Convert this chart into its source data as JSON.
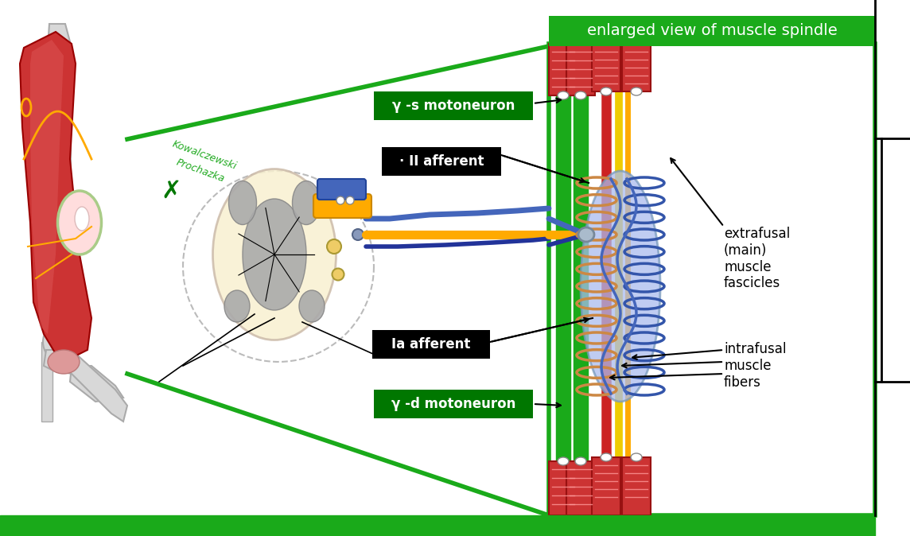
{
  "bg_color": "#ffffff",
  "green_banner_text": "enlarged view of muscle spindle",
  "green_color": "#1aaa1a",
  "green_dark": "#007700",
  "green_banner_text_color": "#ffffff",
  "gamma_s_label": "γ -s motoneuron",
  "gamma_d_label": "γ -d motoneuron",
  "II_afferent_label": "· II afferent",
  "Ia_afferent_label": "Ia afferent",
  "extrafusal_label": "extrafusal\n(main)\nmuscle\nfascicles",
  "intrafusal_label": "intrafusal\nmuscle\nfibers",
  "credit_line1": "Kowalczewski",
  "credit_line2": "Prochazka",
  "credit_color": "#22aa22",
  "orange_color": "#ffaa00",
  "blue_color": "#4466bb",
  "dark_blue_color": "#223399",
  "red_color": "#cc2222",
  "yellow_color": "#eecc00",
  "muscle_red": "#cc3333",
  "muscle_light": "#e88888",
  "spindle_blue": "#aabbee",
  "spindle_edge": "#7799bb",
  "bone_gray": "#d8d8d8",
  "bone_edge": "#aaaaaa",
  "spinal_cream": "#f8f0d0",
  "gray_matter": "#888888",
  "bottom_bar_color": "#1aaa1a",
  "coil_brown": "#cc8844",
  "coil_blue": "#3355aa"
}
